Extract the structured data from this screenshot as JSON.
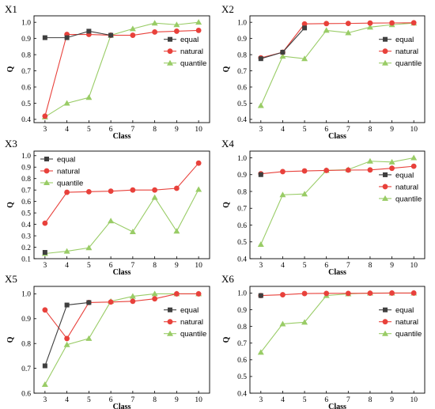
{
  "colors": {
    "equal": "#3f3f3f",
    "natural": "#e8413b",
    "quantile": "#99cc66"
  },
  "chart_data": [
    {
      "type": "line",
      "panel": "X1",
      "title": "",
      "xlabel": "Class",
      "ylabel": "Q",
      "x": [
        3,
        4,
        5,
        6,
        7,
        8,
        9,
        10
      ],
      "xlim": [
        2.5,
        10.5
      ],
      "ylim": [
        0.38,
        1.04
      ],
      "yticks": [
        0.4,
        0.5,
        0.6,
        0.7,
        0.8,
        0.9,
        1.0
      ],
      "ytick_labels": [
        "0.4",
        "0.5",
        "0.6",
        "0.7",
        "0.8",
        "0.9",
        "1.0"
      ],
      "legend": "right",
      "series": [
        {
          "name": "equal",
          "marker": "square",
          "x": [
            3,
            4,
            5,
            6
          ],
          "values": [
            0.905,
            0.905,
            0.945,
            0.92
          ]
        },
        {
          "name": "natural",
          "marker": "circle",
          "x": [
            3,
            4,
            5,
            6,
            7,
            8,
            9,
            10
          ],
          "values": [
            0.42,
            0.925,
            0.925,
            0.92,
            0.92,
            0.94,
            0.945,
            0.95
          ]
        },
        {
          "name": "quantile",
          "marker": "triangle",
          "x": [
            3,
            4,
            5,
            6,
            7,
            8,
            9,
            10
          ],
          "values": [
            0.415,
            0.5,
            0.535,
            0.92,
            0.96,
            0.995,
            0.985,
            1.0
          ]
        }
      ]
    },
    {
      "type": "line",
      "panel": "X2",
      "title": "",
      "xlabel": "Class",
      "ylabel": "Q",
      "x": [
        3,
        4,
        5,
        6,
        7,
        8,
        9,
        10
      ],
      "xlim": [
        2.5,
        10.5
      ],
      "ylim": [
        0.38,
        1.04
      ],
      "yticks": [
        0.4,
        0.5,
        0.6,
        0.7,
        0.8,
        0.9,
        1.0
      ],
      "ytick_labels": [
        "0.4",
        "0.5",
        "0.6",
        "0.7",
        "0.8",
        "0.9",
        "1.0"
      ],
      "legend": "right",
      "series": [
        {
          "name": "equal",
          "marker": "square",
          "x": [
            3,
            4,
            5
          ],
          "values": [
            0.775,
            0.815,
            0.965
          ]
        },
        {
          "name": "natural",
          "marker": "circle",
          "x": [
            3,
            4,
            5,
            6,
            7,
            8,
            9,
            10
          ],
          "values": [
            0.78,
            0.815,
            0.99,
            0.992,
            0.993,
            0.995,
            0.996,
            0.997
          ]
        },
        {
          "name": "quantile",
          "marker": "triangle",
          "x": [
            3,
            4,
            5,
            6,
            7,
            8,
            9,
            10
          ],
          "values": [
            0.485,
            0.79,
            0.775,
            0.95,
            0.935,
            0.97,
            0.985,
            0.995
          ]
        }
      ]
    },
    {
      "type": "line",
      "panel": "X3",
      "title": "",
      "xlabel": "Class",
      "ylabel": "Q",
      "x": [
        3,
        4,
        5,
        6,
        7,
        8,
        9,
        10
      ],
      "xlim": [
        2.5,
        10.5
      ],
      "ylim": [
        0.1,
        1.04
      ],
      "yticks": [
        0.1,
        0.2,
        0.3,
        0.4,
        0.5,
        0.6,
        0.7,
        0.8,
        0.9,
        1.0
      ],
      "ytick_labels": [
        "0.1",
        "0.2",
        "0.3",
        "0.4",
        "0.5",
        "0.6",
        "0.7",
        "0.8",
        "0.9",
        "1.0"
      ],
      "legend": "top-left",
      "series": [
        {
          "name": "equal",
          "marker": "square",
          "x": [
            3
          ],
          "values": [
            0.155
          ]
        },
        {
          "name": "natural",
          "marker": "circle",
          "x": [
            3,
            4,
            5,
            6,
            7,
            8,
            9,
            10
          ],
          "values": [
            0.41,
            0.68,
            0.685,
            0.69,
            0.7,
            0.7,
            0.715,
            0.935
          ]
        },
        {
          "name": "quantile",
          "marker": "triangle",
          "x": [
            3,
            4,
            5,
            6,
            7,
            8,
            9,
            10
          ],
          "values": [
            0.145,
            0.165,
            0.195,
            0.43,
            0.335,
            0.635,
            0.34,
            0.705
          ]
        }
      ]
    },
    {
      "type": "line",
      "panel": "X4",
      "title": "",
      "xlabel": "Class",
      "ylabel": "Q",
      "x": [
        3,
        4,
        5,
        6,
        7,
        8,
        9,
        10
      ],
      "xlim": [
        2.5,
        10.5
      ],
      "ylim": [
        0.4,
        1.04
      ],
      "yticks": [
        0.4,
        0.5,
        0.6,
        0.7,
        0.8,
        0.9,
        1.0
      ],
      "ytick_labels": [
        "0.4",
        "0.5",
        "0.6",
        "0.7",
        "0.8",
        "0.9",
        "1.0"
      ],
      "legend": "right",
      "series": [
        {
          "name": "equal",
          "marker": "square",
          "x": [
            3
          ],
          "values": [
            0.9
          ]
        },
        {
          "name": "natural",
          "marker": "circle",
          "x": [
            3,
            4,
            5,
            6,
            7,
            8,
            9,
            10
          ],
          "values": [
            0.905,
            0.918,
            0.922,
            0.925,
            0.927,
            0.928,
            0.938,
            0.95
          ]
        },
        {
          "name": "quantile",
          "marker": "triangle",
          "x": [
            3,
            4,
            5,
            6,
            7,
            8,
            9,
            10
          ],
          "values": [
            0.485,
            0.78,
            0.785,
            0.925,
            0.93,
            0.98,
            0.975,
            1.0
          ]
        }
      ]
    },
    {
      "type": "line",
      "panel": "X5",
      "title": "",
      "xlabel": "Class",
      "ylabel": "Q",
      "x": [
        3,
        4,
        5,
        6,
        7,
        8,
        9,
        10
      ],
      "xlim": [
        2.5,
        10.5
      ],
      "ylim": [
        0.6,
        1.03
      ],
      "yticks": [
        0.6,
        0.7,
        0.8,
        0.9,
        1.0
      ],
      "ytick_labels": [
        "0.6",
        "0.7",
        "0.8",
        "0.9",
        "1.0"
      ],
      "legend": "right",
      "series": [
        {
          "name": "equal",
          "marker": "square",
          "x": [
            3,
            4,
            5
          ],
          "values": [
            0.71,
            0.955,
            0.965
          ]
        },
        {
          "name": "natural",
          "marker": "circle",
          "x": [
            3,
            4,
            5,
            6,
            7,
            8,
            9,
            10
          ],
          "values": [
            0.935,
            0.82,
            0.965,
            0.967,
            0.97,
            0.98,
            1.0,
            1.0
          ]
        },
        {
          "name": "quantile",
          "marker": "triangle",
          "x": [
            3,
            4,
            5,
            6,
            7,
            8,
            9,
            10
          ],
          "values": [
            0.635,
            0.795,
            0.82,
            0.97,
            0.99,
            1.0,
            1.0,
            1.0
          ]
        }
      ]
    },
    {
      "type": "line",
      "panel": "X6",
      "title": "",
      "xlabel": "Class",
      "ylabel": "Q",
      "x": [
        3,
        4,
        5,
        6,
        7,
        8,
        9,
        10
      ],
      "xlim": [
        2.5,
        10.5
      ],
      "ylim": [
        0.4,
        1.04
      ],
      "yticks": [
        0.4,
        0.5,
        0.6,
        0.7,
        0.8,
        0.9,
        1.0
      ],
      "ytick_labels": [
        "0.4",
        "0.5",
        "0.6",
        "0.7",
        "0.8",
        "0.9",
        "1.0"
      ],
      "legend": "right",
      "series": [
        {
          "name": "equal",
          "marker": "square",
          "x": [
            3
          ],
          "values": [
            0.985
          ]
        },
        {
          "name": "natural",
          "marker": "circle",
          "x": [
            3,
            4,
            5,
            6,
            7,
            8,
            9,
            10
          ],
          "values": [
            0.985,
            0.99,
            0.997,
            0.998,
            0.998,
            0.999,
            1.0,
            1.0
          ]
        },
        {
          "name": "quantile",
          "marker": "triangle",
          "x": [
            3,
            4,
            5,
            6,
            7,
            8,
            9,
            10
          ],
          "values": [
            0.645,
            0.815,
            0.825,
            0.985,
            0.995,
            1.0,
            1.0,
            1.0
          ]
        }
      ]
    }
  ]
}
